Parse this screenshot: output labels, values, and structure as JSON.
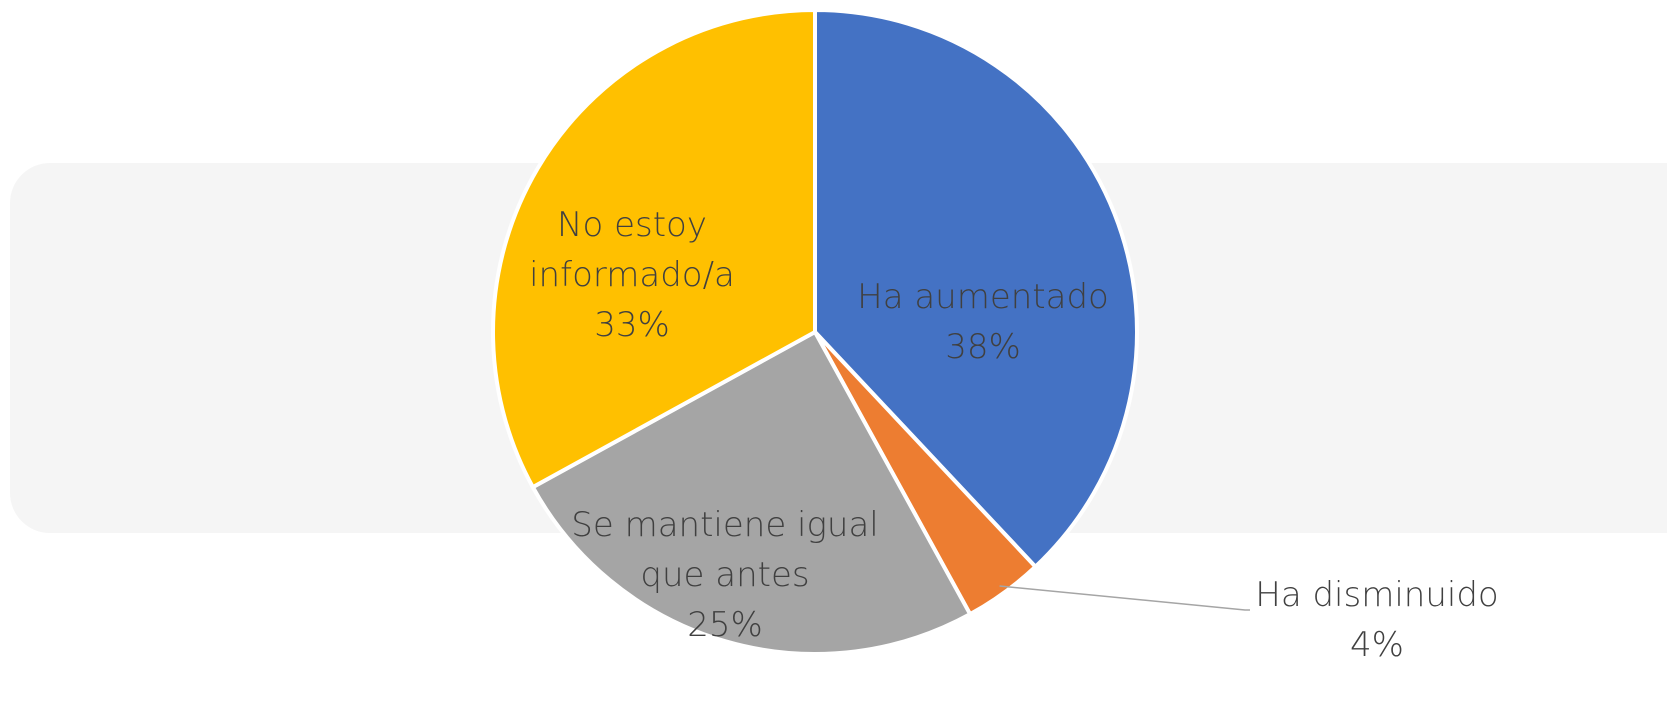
{
  "chart_data": {
    "type": "pie",
    "categories": [
      "Ha aumentado",
      "Ha disminuido",
      "Se mantiene igual que antes",
      "No estoy informado/a"
    ],
    "values": [
      38,
      4,
      25,
      33
    ],
    "value_labels": [
      "38%",
      "4%",
      "25%",
      "33%"
    ],
    "colors": [
      "#4472c4",
      "#ed7d31",
      "#a5a5a5",
      "#ffc000"
    ]
  }
}
